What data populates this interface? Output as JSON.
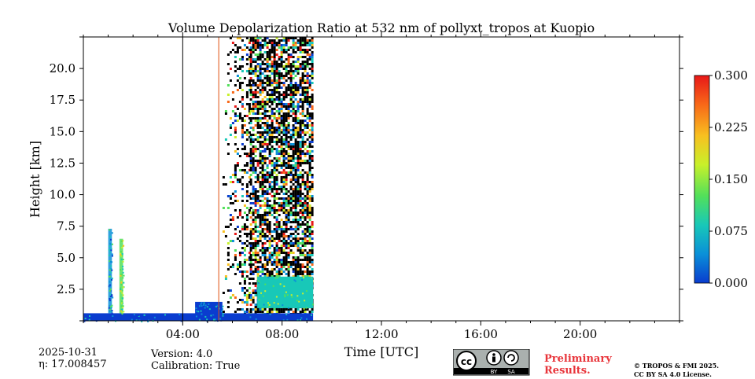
{
  "chart_data": {
    "type": "heatmap",
    "title": "Volume Depolarization Ratio at 532 nm of pollyxt_tropos at Kuopio",
    "xlabel": "Time [UTC]",
    "ylabel": "Height [km]",
    "xlim_hours": [
      0,
      24
    ],
    "ylim_km": [
      0,
      22.5
    ],
    "x_ticks": [
      {
        "hour": 4,
        "label": "04:00"
      },
      {
        "hour": 8,
        "label": "08:00"
      },
      {
        "hour": 12,
        "label": "12:00"
      },
      {
        "hour": 16,
        "label": "16:00"
      },
      {
        "hour": 20,
        "label": "20:00"
      }
    ],
    "y_ticks": [
      {
        "value": 2.5,
        "label": "2.5"
      },
      {
        "value": 5.0,
        "label": "5.0"
      },
      {
        "value": 7.5,
        "label": "7.5"
      },
      {
        "value": 10.0,
        "label": "10.0"
      },
      {
        "value": 12.5,
        "label": "12.5"
      },
      {
        "value": 15.0,
        "label": "15.0"
      },
      {
        "value": 17.5,
        "label": "17.5"
      },
      {
        "value": 20.0,
        "label": "20.0"
      }
    ],
    "colorbar": {
      "min": 0.0,
      "max": 0.3,
      "ticks": [
        {
          "value": 0.0,
          "label": "0.000"
        },
        {
          "value": 0.075,
          "label": "0.075"
        },
        {
          "value": 0.15,
          "label": "0.150"
        },
        {
          "value": 0.225,
          "label": "0.225"
        },
        {
          "value": 0.3,
          "label": "0.300"
        }
      ],
      "colormap": [
        "#0a3ccf",
        "#0a90d8",
        "#18c8b8",
        "#52e05a",
        "#c8f02a",
        "#f8c020",
        "#f86818",
        "#e81818"
      ]
    },
    "measurement_end_hour": 9.25,
    "vertical_lines": [
      {
        "hour": 4.0,
        "color": "#000000"
      },
      {
        "hour": 5.45,
        "color": "#e05010"
      }
    ],
    "regions": [
      {
        "name": "boundary-layer",
        "t_start": 0.0,
        "t_end": 9.25,
        "h_top": 0.6,
        "depol": 0.02
      },
      {
        "name": "low-cloud-layer",
        "t_start": 4.5,
        "t_end": 5.6,
        "h_top": 1.5,
        "depol": 0.03
      },
      {
        "name": "plume-1",
        "t_start": 1.0,
        "t_end": 1.15,
        "h_bottom": 0.6,
        "h_top": 7.3,
        "depol": 0.05
      },
      {
        "name": "plume-2",
        "t_start": 1.45,
        "t_end": 1.6,
        "h_bottom": 0.6,
        "h_top": 6.5,
        "depol": 0.12
      },
      {
        "name": "noise-sparse",
        "t_start": 5.6,
        "t_end": 6.7,
        "h_bottom": 0.6,
        "h_top": 22.5,
        "depol": "noisy"
      },
      {
        "name": "noise-dense",
        "t_start": 6.7,
        "t_end": 9.25,
        "h_bottom": 0.6,
        "h_top": 22.5,
        "depol": "noisy"
      },
      {
        "name": "aerosol-layer",
        "t_start": 7.0,
        "t_end": 9.25,
        "h_bottom": 1.0,
        "h_top": 3.5,
        "depol": 0.1
      }
    ]
  },
  "footer": {
    "date": "2025-10-31",
    "eta": "η: 17.008457",
    "version": "Version: 4.0",
    "calibration": "Calibration: True",
    "preliminary_line1": "Preliminary",
    "preliminary_line2": "Results.",
    "copyright_line1": "© TROPOS & FMI 2025.",
    "copyright_line2": "CC BY SA 4.0 License.",
    "license_badge": "cc-by-sa-icon",
    "license_by": "BY",
    "license_sa": "SA"
  }
}
